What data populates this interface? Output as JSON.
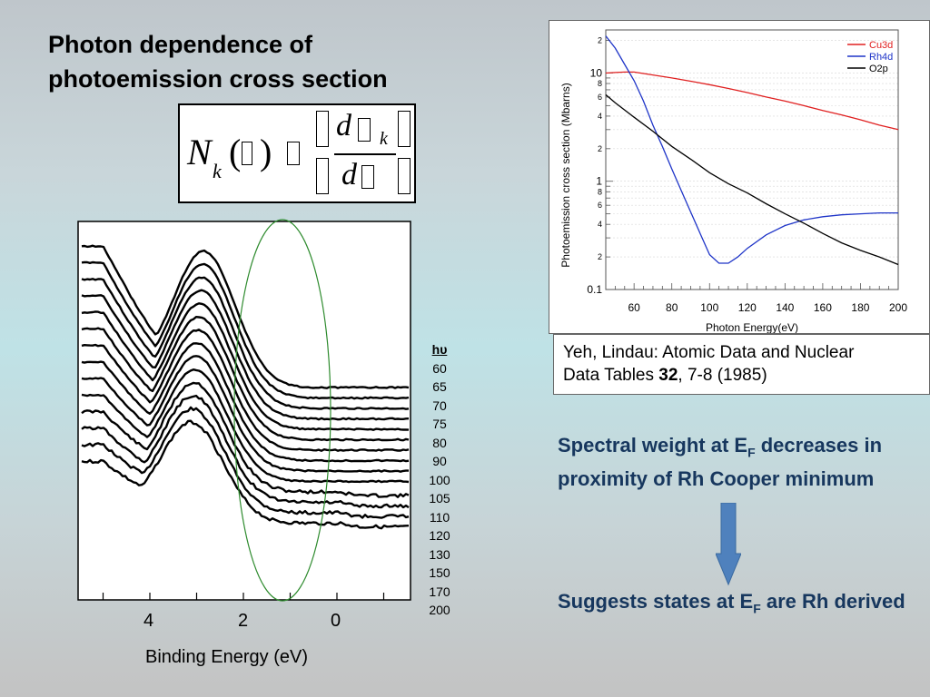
{
  "slide": {
    "title_line1": "Photon dependence of",
    "title_line2": "photoemission cross section",
    "formula": {
      "N": "N",
      "k": "k",
      "d": "d"
    },
    "spectra": {
      "hv_header": "hυ",
      "hv_values": [
        "60",
        "65",
        "70",
        "75",
        "80",
        "90",
        "100",
        "105",
        "110",
        "120",
        "130",
        "150",
        "170",
        "200"
      ],
      "x_ticks": [
        "4",
        "2",
        "0"
      ],
      "x_label": "Binding Energy (eV)"
    },
    "reference": {
      "line1": "Yeh, Lindau: Atomic Data and Nuclear",
      "line2_pre": "Data Tables ",
      "line2_bold": "32",
      "line2_post": ", 7-8 (1985)"
    },
    "note1": {
      "part1": "Spectral weight at E",
      "sub": "F",
      "part2": " decreases in proximity of Rh Cooper minimum"
    },
    "note2": {
      "part1": "Suggests states at E",
      "sub": "F",
      "part2": " are Rh derived"
    },
    "colors": {
      "cu3d": "#e02020",
      "rh4d": "#1f35c8",
      "o2p": "#000000",
      "note_text": "#17375e",
      "arrow": "#4f81bd",
      "ellipse": "#2e8b2e"
    }
  },
  "chart_data": {
    "type": "line",
    "xlabel": "Photon Energy(eV)",
    "ylabel": "Photoemission  cross section (Mbarns)",
    "x_ticks": [
      "60",
      "80",
      "100",
      "120",
      "140",
      "160",
      "180",
      "200"
    ],
    "y_major_labels": [
      "10",
      "1",
      "0.1"
    ],
    "y_minor_labels": [
      "2",
      "8",
      "6",
      "4",
      "2",
      "8",
      "6",
      "4",
      "2"
    ],
    "xlim": [
      45,
      200
    ],
    "ylim": [
      0.1,
      25
    ],
    "yscale": "log",
    "legend_position": "top-right",
    "series": [
      {
        "name": "Cu3d",
        "color": "#e02020",
        "x": [
          45,
          50,
          55,
          60,
          70,
          80,
          90,
          100,
          110,
          120,
          130,
          140,
          150,
          160,
          170,
          180,
          190,
          200
        ],
        "y": [
          10.0,
          10.1,
          10.2,
          10.2,
          9.6,
          9.0,
          8.4,
          7.8,
          7.2,
          6.6,
          6.0,
          5.5,
          5.0,
          4.5,
          4.1,
          3.7,
          3.3,
          3.0
        ]
      },
      {
        "name": "Rh4d",
        "color": "#1f35c8",
        "x": [
          45,
          50,
          55,
          60,
          65,
          70,
          75,
          80,
          85,
          90,
          95,
          100,
          105,
          110,
          115,
          120,
          130,
          140,
          150,
          160,
          170,
          180,
          190,
          200
        ],
        "y": [
          22,
          17,
          12,
          8.5,
          5.5,
          3.3,
          2.1,
          1.3,
          0.82,
          0.52,
          0.33,
          0.21,
          0.175,
          0.175,
          0.2,
          0.24,
          0.32,
          0.39,
          0.44,
          0.47,
          0.49,
          0.5,
          0.51,
          0.51
        ]
      },
      {
        "name": "O2p",
        "color": "#000000",
        "x": [
          45,
          50,
          60,
          70,
          80,
          90,
          100,
          110,
          120,
          130,
          140,
          150,
          160,
          170,
          180,
          190,
          200
        ],
        "y": [
          6.3,
          5.3,
          3.9,
          2.9,
          2.1,
          1.6,
          1.2,
          0.95,
          0.78,
          0.62,
          0.5,
          0.41,
          0.33,
          0.27,
          0.23,
          0.2,
          0.17
        ]
      }
    ]
  }
}
